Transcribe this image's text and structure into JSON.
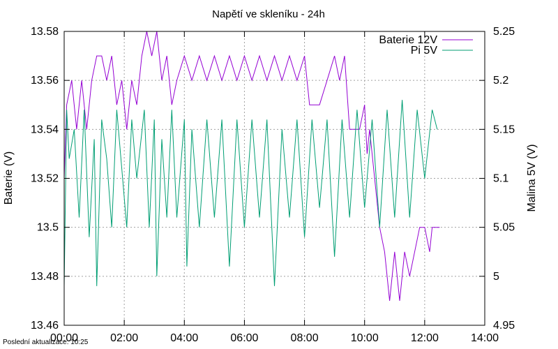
{
  "chart_data": {
    "type": "line",
    "title": "Napětí ve skleníku - 24h",
    "ylabel": "Baterie (V)",
    "y2label": "Malina 5V (V)",
    "xlabel": "",
    "xlim": [
      "00:00",
      "14:00"
    ],
    "ylim": [
      13.46,
      13.58
    ],
    "y2lim": [
      4.95,
      5.25
    ],
    "x_ticks": [
      "00:00",
      "02:00",
      "04:00",
      "06:00",
      "08:00",
      "10:00",
      "12:00",
      "14:00"
    ],
    "y_ticks": [
      "13.46",
      "13.48",
      "13.5",
      "13.52",
      "13.54",
      "13.56",
      "13.58"
    ],
    "y2_ticks": [
      "4.95",
      "5",
      "5.05",
      "5.1",
      "5.15",
      "5.2",
      "5.25"
    ],
    "grid": true,
    "legend_position": "top-right",
    "series": [
      {
        "name": "Baterie 12V",
        "axis": "left",
        "color": "#9400d3",
        "points": [
          [
            "00:00",
            13.52
          ],
          [
            "00:05",
            13.55
          ],
          [
            "00:15",
            13.56
          ],
          [
            "00:25",
            13.54
          ],
          [
            "00:35",
            13.56
          ],
          [
            "00:45",
            13.54
          ],
          [
            "00:55",
            13.56
          ],
          [
            "01:05",
            13.57
          ],
          [
            "01:15",
            13.57
          ],
          [
            "01:25",
            13.56
          ],
          [
            "01:35",
            13.57
          ],
          [
            "01:45",
            13.55
          ],
          [
            "01:55",
            13.56
          ],
          [
            "02:05",
            13.54
          ],
          [
            "02:15",
            13.56
          ],
          [
            "02:25",
            13.55
          ],
          [
            "02:35",
            13.57
          ],
          [
            "02:45",
            13.58
          ],
          [
            "02:55",
            13.57
          ],
          [
            "03:05",
            13.58
          ],
          [
            "03:15",
            13.56
          ],
          [
            "03:25",
            13.57
          ],
          [
            "03:35",
            13.55
          ],
          [
            "03:45",
            13.56
          ],
          [
            "04:00",
            13.57
          ],
          [
            "04:15",
            13.56
          ],
          [
            "04:30",
            13.57
          ],
          [
            "04:45",
            13.56
          ],
          [
            "05:00",
            13.57
          ],
          [
            "05:15",
            13.56
          ],
          [
            "05:30",
            13.57
          ],
          [
            "05:45",
            13.56
          ],
          [
            "06:00",
            13.57
          ],
          [
            "06:15",
            13.56
          ],
          [
            "06:30",
            13.57
          ],
          [
            "06:45",
            13.56
          ],
          [
            "07:00",
            13.57
          ],
          [
            "07:15",
            13.56
          ],
          [
            "07:30",
            13.57
          ],
          [
            "07:45",
            13.56
          ],
          [
            "08:00",
            13.57
          ],
          [
            "08:10",
            13.55
          ],
          [
            "08:20",
            13.55
          ],
          [
            "08:30",
            13.55
          ],
          [
            "08:45",
            13.56
          ],
          [
            "09:00",
            13.57
          ],
          [
            "09:10",
            13.56
          ],
          [
            "09:20",
            13.57
          ],
          [
            "09:30",
            13.54
          ],
          [
            "09:40",
            13.54
          ],
          [
            "09:50",
            13.54
          ],
          [
            "10:00",
            13.55
          ],
          [
            "10:05",
            13.53
          ],
          [
            "10:10",
            13.54
          ],
          [
            "10:20",
            13.52
          ],
          [
            "10:30",
            13.5
          ],
          [
            "10:40",
            13.49
          ],
          [
            "10:50",
            13.47
          ],
          [
            "11:00",
            13.49
          ],
          [
            "11:10",
            13.47
          ],
          [
            "11:20",
            13.49
          ],
          [
            "11:30",
            13.48
          ],
          [
            "11:40",
            13.49
          ],
          [
            "11:50",
            13.5
          ],
          [
            "12:00",
            13.5
          ],
          [
            "12:10",
            13.49
          ],
          [
            "12:15",
            13.5
          ],
          [
            "12:30",
            13.5
          ]
        ]
      },
      {
        "name": "Pi 5V",
        "axis": "right",
        "color": "#009e73",
        "points": [
          [
            "00:00",
            4.99
          ],
          [
            "00:05",
            5.17
          ],
          [
            "00:10",
            5.12
          ],
          [
            "00:20",
            5.15
          ],
          [
            "00:30",
            5.06
          ],
          [
            "00:40",
            5.17
          ],
          [
            "00:50",
            5.04
          ],
          [
            "01:00",
            5.14
          ],
          [
            "01:05",
            4.99
          ],
          [
            "01:15",
            5.16
          ],
          [
            "01:25",
            5.12
          ],
          [
            "01:35",
            5.05
          ],
          [
            "01:45",
            5.17
          ],
          [
            "01:55",
            5.11
          ],
          [
            "02:05",
            5.05
          ],
          [
            "02:15",
            5.16
          ],
          [
            "02:25",
            5.1
          ],
          [
            "02:40",
            5.17
          ],
          [
            "02:50",
            5.05
          ],
          [
            "03:00",
            5.16
          ],
          [
            "03:05",
            5.0
          ],
          [
            "03:15",
            5.14
          ],
          [
            "03:25",
            5.06
          ],
          [
            "03:35",
            5.17
          ],
          [
            "03:45",
            5.06
          ],
          [
            "04:00",
            5.16
          ],
          [
            "04:05",
            5.01
          ],
          [
            "04:15",
            5.15
          ],
          [
            "04:30",
            5.05
          ],
          [
            "04:45",
            5.16
          ],
          [
            "05:00",
            5.06
          ],
          [
            "05:15",
            5.16
          ],
          [
            "05:30",
            5.01
          ],
          [
            "05:45",
            5.16
          ],
          [
            "06:00",
            5.05
          ],
          [
            "06:15",
            5.16
          ],
          [
            "06:30",
            5.06
          ],
          [
            "06:45",
            5.16
          ],
          [
            "07:00",
            4.99
          ],
          [
            "07:15",
            5.15
          ],
          [
            "07:30",
            5.06
          ],
          [
            "07:45",
            5.16
          ],
          [
            "08:00",
            5.04
          ],
          [
            "08:15",
            5.16
          ],
          [
            "08:30",
            5.07
          ],
          [
            "08:45",
            5.16
          ],
          [
            "09:00",
            5.02
          ],
          [
            "09:15",
            5.16
          ],
          [
            "09:30",
            5.06
          ],
          [
            "09:45",
            5.17
          ],
          [
            "10:00",
            5.07
          ],
          [
            "10:15",
            5.16
          ],
          [
            "10:30",
            5.05
          ],
          [
            "10:45",
            5.17
          ],
          [
            "11:00",
            5.06
          ],
          [
            "11:15",
            5.18
          ],
          [
            "11:30",
            5.06
          ],
          [
            "11:45",
            5.17
          ],
          [
            "12:00",
            5.1
          ],
          [
            "12:15",
            5.17
          ],
          [
            "12:25",
            5.15
          ]
        ]
      }
    ]
  },
  "footer": {
    "updated": "Poslední aktualizace: 10:25"
  }
}
